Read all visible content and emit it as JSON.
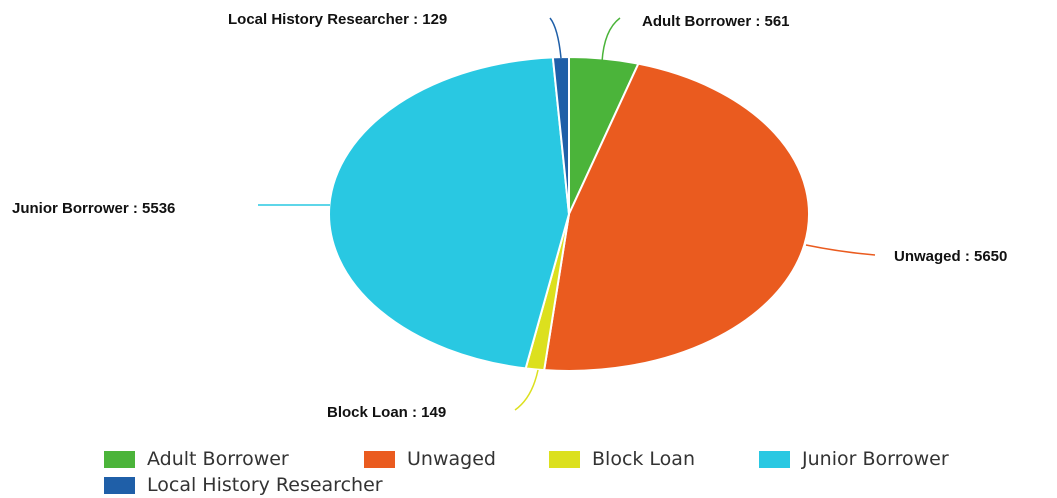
{
  "chart_data": {
    "type": "pie",
    "title": "",
    "slices": [
      {
        "label": "Adult Borrower",
        "value": 561,
        "color": "#4bb43a"
      },
      {
        "label": "Unwaged",
        "value": 5650,
        "color": "#ea5b1f"
      },
      {
        "label": "Block Loan",
        "value": 149,
        "color": "#dce01e"
      },
      {
        "label": "Junior Borrower",
        "value": 5536,
        "color": "#29c8e2"
      },
      {
        "label": "Local History Researcher",
        "value": 129,
        "color": "#1f5fa8"
      }
    ],
    "callouts": [
      {
        "text": "Adult Borrower : 561"
      },
      {
        "text": "Unwaged : 5650"
      },
      {
        "text": "Block Loan : 149"
      },
      {
        "text": "Junior Borrower : 5536"
      },
      {
        "text": "Local History Researcher : 129"
      }
    ],
    "legend": {
      "placement": "bottom-left",
      "entries": [
        "Adult Borrower",
        "Unwaged",
        "Block Loan",
        "Junior Borrower",
        "Local History Researcher"
      ]
    }
  }
}
